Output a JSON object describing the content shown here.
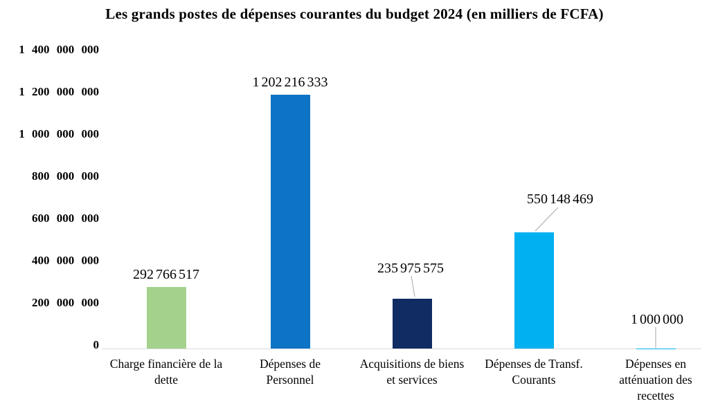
{
  "chart_data": {
    "type": "bar",
    "title": "Les grands postes de dépenses courantes du budget 2024 (en milliers de FCFA)",
    "categories": [
      "Charge financière de la dette",
      "Dépenses de Personnel",
      "Acquisitions de biens et services",
      "Dépenses de Transf. Courants",
      "Dépenses en atténuation des recettes"
    ],
    "category_lines": [
      [
        "Charge financière de la",
        "dette"
      ],
      [
        "Dépenses de",
        "Personnel"
      ],
      [
        "Acquisitions de biens",
        "et services"
      ],
      [
        "Dépenses de Transf.",
        "Courants"
      ],
      [
        "Dépenses en",
        "atténuation des",
        "recettes"
      ]
    ],
    "values": [
      292766517,
      1202216333,
      235975575,
      550148469,
      1000000
    ],
    "data_labels": [
      "292 766 517",
      "1 202 216 333",
      "235 975 575",
      "550 148 469",
      "1 000 000"
    ],
    "bar_colors": [
      "#A4D18C",
      "#0D73C4",
      "#112C63",
      "#00B0F0",
      "#00B0F0"
    ],
    "ylim": [
      0,
      1400000000
    ],
    "ytick_step": 200000000,
    "ytick_labels": [
      "0",
      "200 000 000",
      "400 000 000",
      "600 000 000",
      "800 000 000",
      "1 000 000 000",
      "1 200 000 000",
      "1 400 000 000"
    ],
    "xlabel": "",
    "ylabel": "",
    "grid": false,
    "legend": "none",
    "axis_line_color": "#D9D9D9",
    "leader_line_color": "#A6A6A6",
    "background": "#FFFFFF",
    "text_color": "#000000"
  }
}
